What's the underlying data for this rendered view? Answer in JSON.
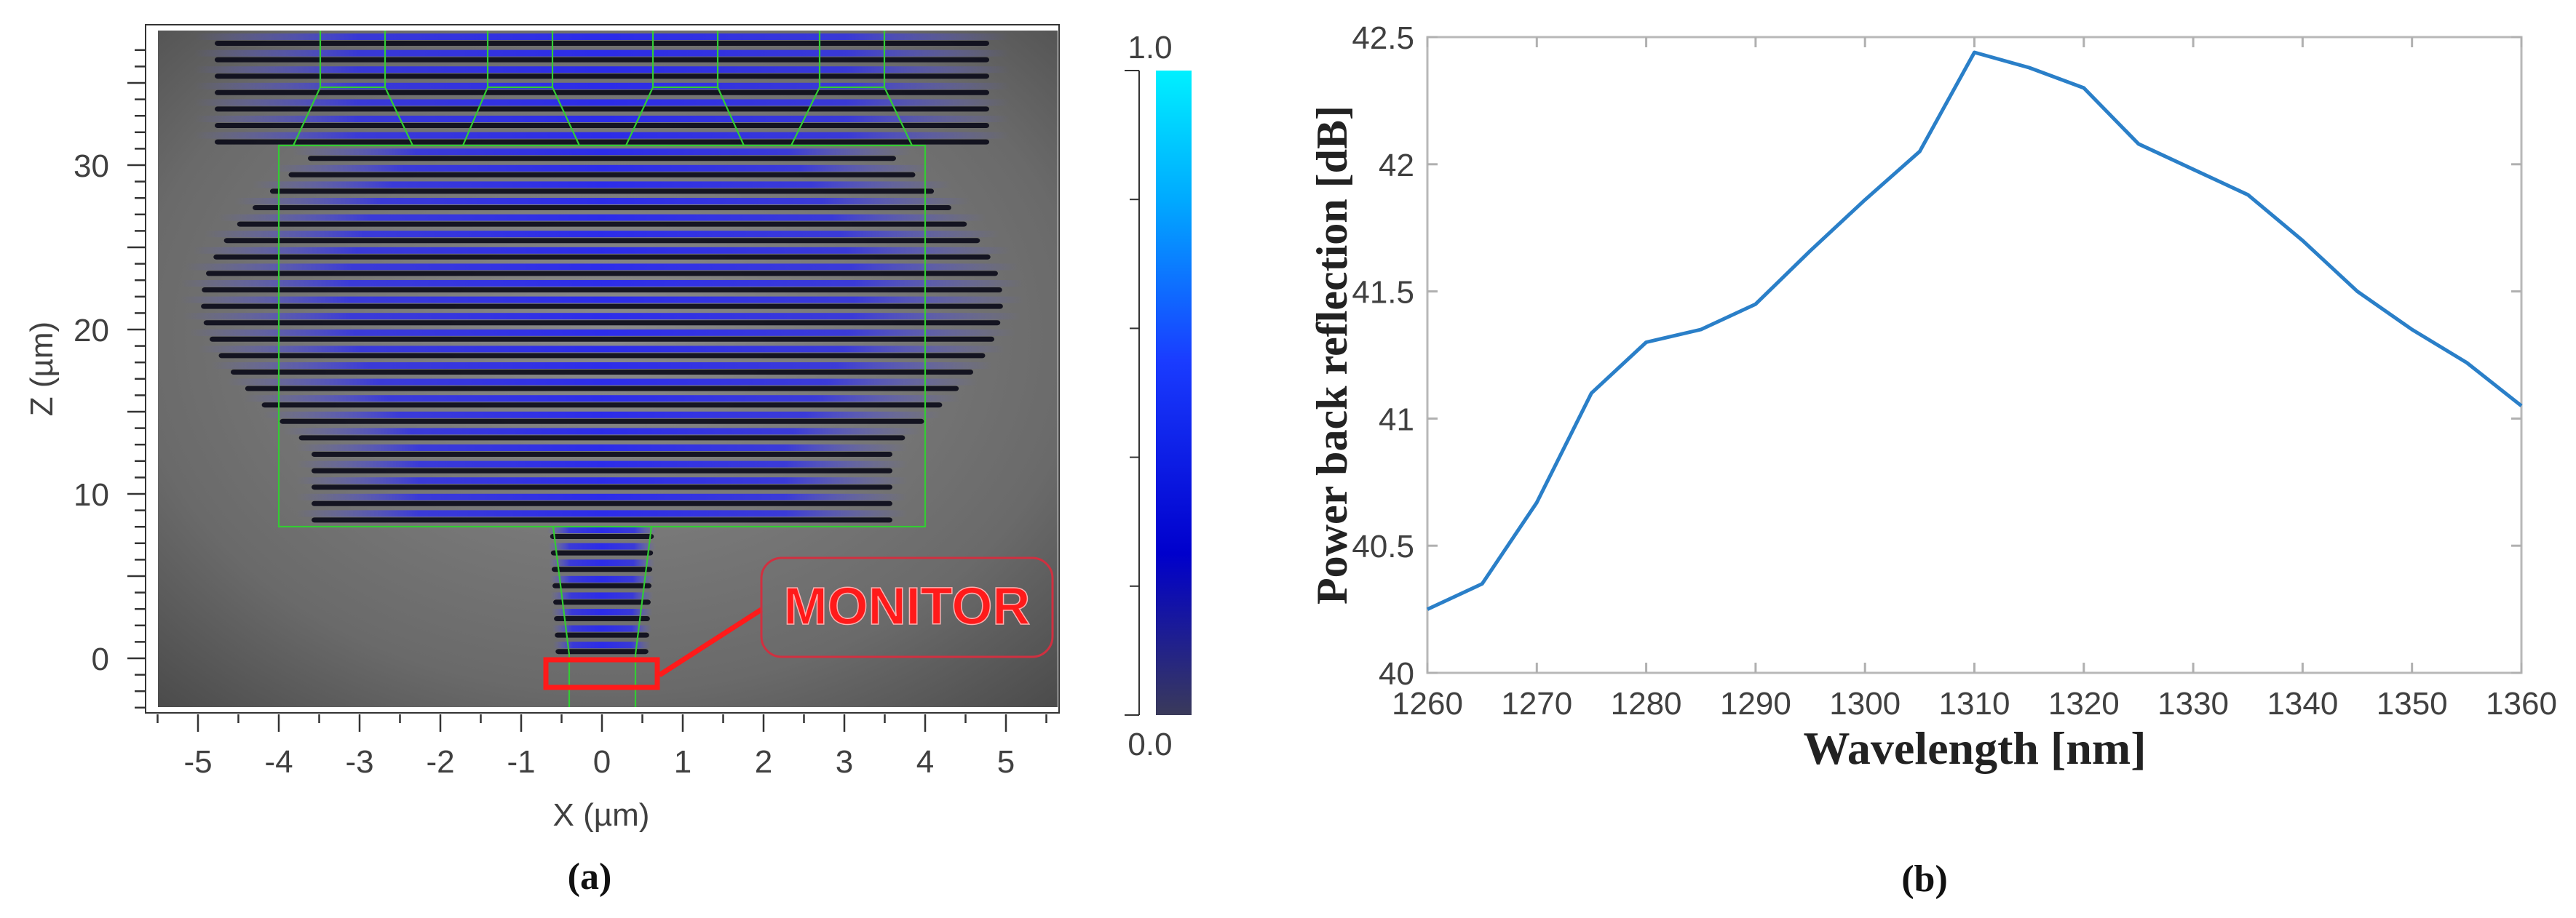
{
  "panel_a": {
    "caption": "(a)",
    "xlabel": "X (µm)",
    "ylabel": "Z (µm)",
    "x_ticks": [
      "-5",
      "-4",
      "-3",
      "-2",
      "-1",
      "0",
      "1",
      "2",
      "3",
      "4",
      "5"
    ],
    "y_ticks": [
      "0",
      "10",
      "20",
      "30"
    ],
    "colorbar": {
      "max_label": "1.0",
      "min_label": "0.0",
      "colors": [
        "#3a3a5a",
        "#0000cc",
        "#1a3cff",
        "#00aaff",
        "#00f0ff"
      ]
    },
    "monitor_label": "MONITOR",
    "colors": {
      "structure_outline": "#33cc33",
      "monitor": "#ff1a1a",
      "background_field": "#6e6e6e",
      "field_fringe": "#2020e0"
    }
  },
  "panel_b": {
    "caption": "(b)"
  },
  "chart_data": [
    {
      "type": "heatmap",
      "title": "",
      "xlabel": "X (µm)",
      "ylabel": "Z (µm)",
      "xlim": [
        -5.5,
        5.5
      ],
      "ylim": [
        -3.3,
        38
      ],
      "x_ticks": [
        -5,
        -4,
        -3,
        -2,
        -1,
        0,
        1,
        2,
        3,
        4,
        5
      ],
      "y_ticks": [
        0,
        10,
        20,
        30
      ],
      "colorbar": {
        "min": 0.0,
        "max": 1.0,
        "colormap": "dark-navy to blue to cyan"
      },
      "annotations": [
        "MONITOR"
      ],
      "description": "Field intensity in a 1x4 MMI structure: four output waveguides at top (Z ~31-38 µm), MMI region X -4..4 µm, Z ~8..31 µm, input waveguide at bottom with a monitor box near Z = -0.5 µm"
    },
    {
      "type": "line",
      "title": "",
      "xlabel": "Wavelength [nm]",
      "ylabel": "Power back reflection [dB]",
      "xlim": [
        1260,
        1360
      ],
      "ylim": [
        40,
        42.5
      ],
      "x_ticks": [
        1260,
        1270,
        1280,
        1290,
        1300,
        1310,
        1320,
        1330,
        1340,
        1350,
        1360
      ],
      "y_ticks": [
        40,
        40.5,
        41,
        41.5,
        42,
        42.5
      ],
      "y_tick_labels": [
        "40",
        "40.5",
        "41",
        "41.5",
        "42",
        "42.5"
      ],
      "grid": false,
      "line_color": "#2a7fc8",
      "x": [
        1260,
        1265,
        1270,
        1275,
        1280,
        1285,
        1290,
        1295,
        1300,
        1305,
        1310,
        1315,
        1320,
        1325,
        1330,
        1335,
        1340,
        1345,
        1350,
        1355,
        1360
      ],
      "series": [
        {
          "name": "Power back reflection",
          "values": [
            40.25,
            40.35,
            40.67,
            41.1,
            41.3,
            41.35,
            41.45,
            41.66,
            41.86,
            42.05,
            42.44,
            42.38,
            42.3,
            42.08,
            41.98,
            41.88,
            41.7,
            41.5,
            41.35,
            41.22,
            41.05
          ]
        }
      ]
    }
  ]
}
